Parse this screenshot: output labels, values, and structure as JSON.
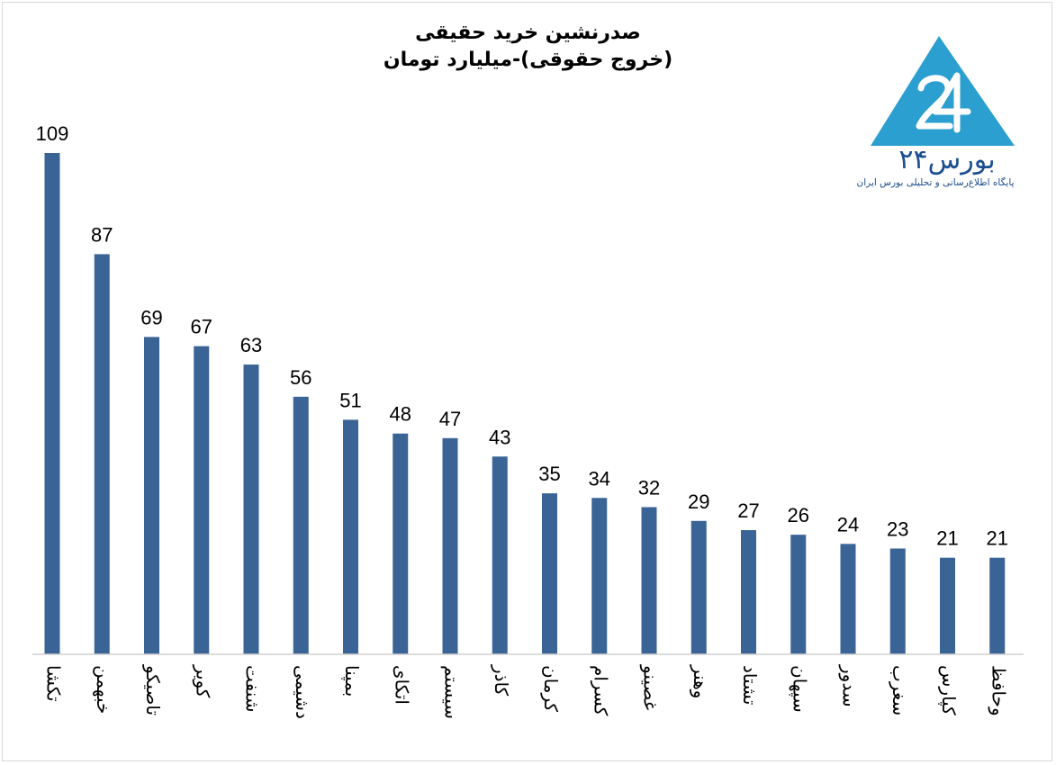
{
  "chart_data": {
    "type": "bar",
    "title": "صدرنشین خرید حقیقی",
    "subtitle": "(خروج حقوقی)-میلیارد تومان",
    "categories": [
      "تکشا",
      "خبهمن",
      "تاصیکو",
      "کویر",
      "شنفت",
      "دشیمی",
      "بمپنا",
      "اتکای",
      "سیستم",
      "کاذر",
      "کرمان",
      "کسرام",
      "غصینو",
      "وهنر",
      "تشتاد",
      "سپهان",
      "سدور",
      "سغرب",
      "کپارس",
      "وحافظ"
    ],
    "values": [
      109,
      87,
      69,
      67,
      63,
      56,
      51,
      48,
      47,
      43,
      35,
      34,
      32,
      29,
      27,
      26,
      24,
      23,
      21,
      21
    ],
    "ylim": [
      0,
      110
    ],
    "grid": false,
    "legend": "none",
    "bar_color": "#3a6496",
    "xlabel": "",
    "ylabel": ""
  },
  "branding": {
    "name": "بورس۲۴",
    "tagline": "پایگاه اطلاع‌رسانی و تحلیلی بورس ایران",
    "logo_color": "#2b9fd0",
    "text_color": "#1b4f8f"
  }
}
